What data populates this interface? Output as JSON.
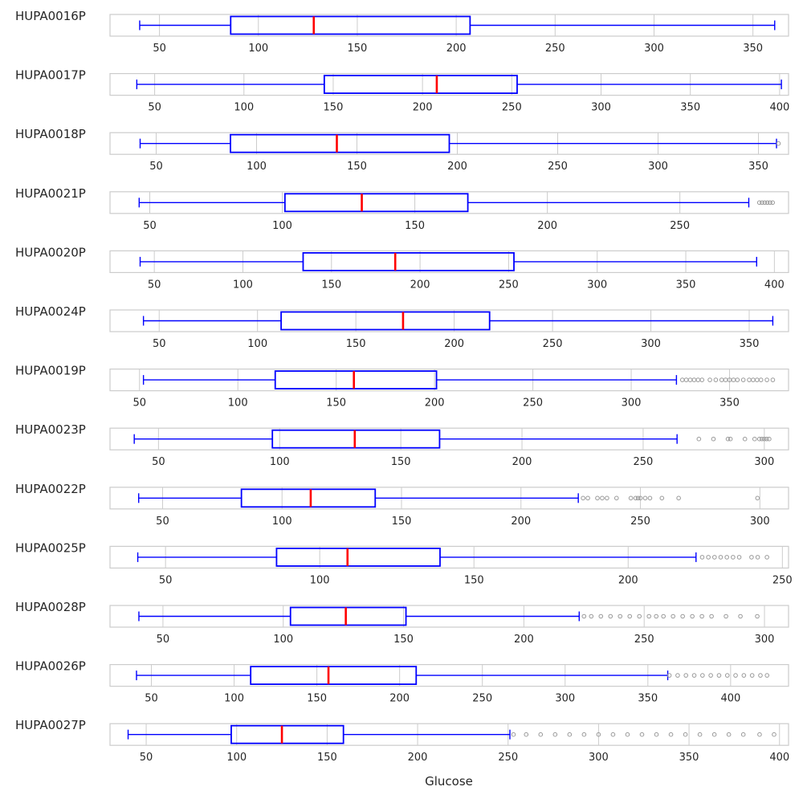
{
  "chart_data": {
    "type": "box",
    "orientation": "horizontal",
    "xlabel": "Glucose",
    "grid": true,
    "colors": {
      "box": "#0000ff",
      "median": "#ff0000",
      "outlier": "#999999",
      "grid": "#cccccc",
      "frame": "#cccccc"
    },
    "panels": [
      {
        "label": "HUPA0016P",
        "xlim": [
          25,
          368
        ],
        "ticks": [
          50,
          100,
          150,
          200,
          250,
          300,
          350
        ],
        "min": 40,
        "q1": 86,
        "median": 128,
        "q3": 207,
        "max": 361,
        "outliers": []
      },
      {
        "label": "HUPA0017P",
        "xlim": [
          25,
          405
        ],
        "ticks": [
          50,
          100,
          150,
          200,
          250,
          300,
          350,
          400
        ],
        "min": 40,
        "q1": 145,
        "median": 208,
        "q3": 253,
        "max": 401,
        "outliers": []
      },
      {
        "label": "HUPA0018P",
        "xlim": [
          27,
          365
        ],
        "ticks": [
          50,
          100,
          150,
          200,
          250,
          300,
          350
        ],
        "min": 42,
        "q1": 87,
        "median": 140,
        "q3": 196,
        "max": 359,
        "outliers": [
          360
        ]
      },
      {
        "label": "HUPA0021P",
        "xlim": [
          35,
          291
        ],
        "ticks": [
          50,
          100,
          150,
          200,
          250
        ],
        "min": 46,
        "q1": 101,
        "median": 130,
        "q3": 170,
        "max": 276,
        "outliers": [
          280,
          281,
          282,
          283,
          284,
          285
        ]
      },
      {
        "label": "HUPA0020P",
        "xlim": [
          25,
          408
        ],
        "ticks": [
          50,
          100,
          150,
          200,
          250,
          300,
          350,
          400
        ],
        "min": 42,
        "q1": 134,
        "median": 186,
        "q3": 253,
        "max": 390,
        "outliers": []
      },
      {
        "label": "HUPA0024P",
        "xlim": [
          25,
          370
        ],
        "ticks": [
          50,
          100,
          150,
          200,
          250,
          300,
          350
        ],
        "min": 42,
        "q1": 112,
        "median": 174,
        "q3": 218,
        "max": 362,
        "outliers": []
      },
      {
        "label": "HUPA0019P",
        "xlim": [
          35,
          380
        ],
        "ticks": [
          50,
          100,
          150,
          200,
          250,
          300,
          350
        ],
        "min": 52,
        "q1": 119,
        "median": 159,
        "q3": 201,
        "max": 323,
        "outliers": [
          326,
          328,
          330,
          332,
          334,
          336,
          340,
          343,
          346,
          348,
          350,
          352,
          354,
          357,
          360,
          362,
          364,
          366,
          369,
          372
        ]
      },
      {
        "label": "HUPA0023P",
        "xlim": [
          30,
          310
        ],
        "ticks": [
          50,
          100,
          150,
          200,
          250,
          300
        ],
        "min": 40,
        "q1": 97,
        "median": 131,
        "q3": 166,
        "max": 264,
        "outliers": [
          273,
          279,
          285,
          286,
          292,
          296,
          298,
          299,
          300,
          301,
          302
        ]
      },
      {
        "label": "HUPA0022P",
        "xlim": [
          28,
          312
        ],
        "ticks": [
          50,
          100,
          150,
          200,
          250,
          300
        ],
        "min": 40,
        "q1": 83,
        "median": 112,
        "q3": 139,
        "max": 224,
        "outliers": [
          226,
          228,
          232,
          234,
          236,
          240,
          246,
          248,
          249,
          250,
          252,
          254,
          259,
          266,
          299
        ]
      },
      {
        "label": "HUPA0025P",
        "xlim": [
          32,
          252
        ],
        "ticks": [
          50,
          100,
          150,
          200,
          250
        ],
        "min": 41,
        "q1": 86,
        "median": 109,
        "q3": 139,
        "max": 222,
        "outliers": [
          224,
          226,
          228,
          230,
          232,
          234,
          236,
          240,
          242,
          245
        ]
      },
      {
        "label": "HUPA0028P",
        "xlim": [
          28,
          310
        ],
        "ticks": [
          50,
          100,
          150,
          200,
          250,
          300
        ],
        "min": 40,
        "q1": 103,
        "median": 126,
        "q3": 151,
        "max": 223,
        "outliers": [
          225,
          228,
          232,
          236,
          240,
          244,
          248,
          252,
          255,
          258,
          262,
          266,
          270,
          274,
          278,
          284,
          290,
          297
        ]
      },
      {
        "label": "HUPA0026P",
        "xlim": [
          25,
          435
        ],
        "ticks": [
          50,
          100,
          150,
          200,
          250,
          300,
          350,
          400
        ],
        "min": 41,
        "q1": 110,
        "median": 157,
        "q3": 210,
        "max": 362,
        "outliers": [
          363,
          368,
          373,
          378,
          383,
          388,
          393,
          398,
          403,
          408,
          413,
          418,
          422
        ]
      },
      {
        "label": "HUPA0027P",
        "xlim": [
          30,
          405
        ],
        "ticks": [
          50,
          100,
          150,
          200,
          250,
          300,
          350,
          400
        ],
        "min": 40,
        "q1": 97,
        "median": 125,
        "q3": 159,
        "max": 251,
        "outliers": [
          253,
          260,
          268,
          276,
          284,
          292,
          300,
          308,
          316,
          324,
          332,
          340,
          348,
          356,
          364,
          372,
          380,
          389,
          397
        ]
      }
    ]
  }
}
